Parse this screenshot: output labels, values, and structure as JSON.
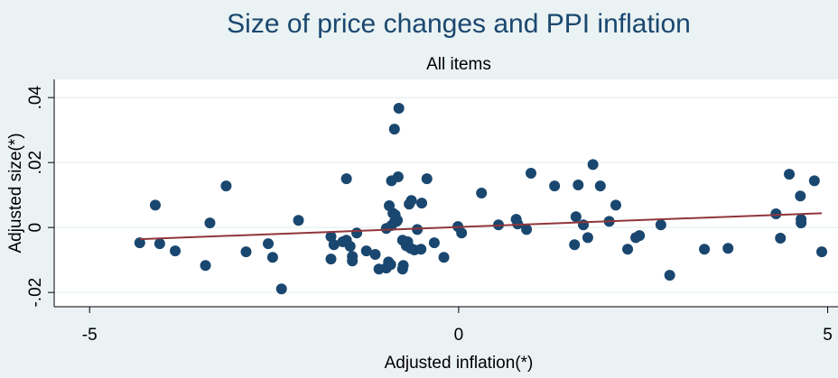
{
  "chart_data": {
    "type": "scatter",
    "title": "Size of price changes and PPI inflation",
    "subtitle": "All items",
    "xlabel": "Adjusted inflation(*)",
    "ylabel": "Adjusted size(*)",
    "xlim": [
      -5.48,
      5.14
    ],
    "xticks": [
      -5,
      0,
      5
    ],
    "ylim": [
      -0.0244,
      0.0456
    ],
    "yticks": [
      {
        "value": -0.02,
        "label": "-.02"
      },
      0,
      {
        "value": 0.02,
        "label": ".02"
      },
      {
        "value": 0.04,
        "label": ".04"
      }
    ],
    "grid": true,
    "series": [
      {
        "type": "scatter",
        "color": "#1a476f",
        "x": [
          -4.32,
          -4.11,
          -4.05,
          -3.84,
          -3.43,
          -3.37,
          -3.15,
          -2.88,
          -2.58,
          -2.52,
          -2.4,
          -2.17,
          -1.73,
          -1.73,
          -1.69,
          -1.57,
          -1.52,
          -1.52,
          -1.47,
          -1.44,
          -1.44,
          -1.38,
          -1.25,
          -1.13,
          -1.08,
          -0.98,
          -0.95,
          -0.98,
          -0.94,
          -0.92,
          -0.91,
          -0.91,
          -0.89,
          -0.87,
          -0.86,
          -0.84,
          -0.83,
          -0.82,
          -0.81,
          -0.87,
          -0.76,
          -0.76,
          -0.75,
          -0.71,
          -0.69,
          -0.67,
          -0.64,
          -0.65,
          -0.6,
          -0.56,
          -0.5,
          -0.51,
          -0.43,
          -0.33,
          -0.2,
          -0.01,
          0.04,
          0.31,
          0.54,
          0.78,
          0.8,
          0.92,
          0.98,
          1.3,
          1.57,
          1.59,
          1.62,
          1.69,
          1.75,
          1.82,
          1.92,
          2.04,
          2.13,
          2.29,
          2.4,
          2.45,
          2.74,
          2.86,
          3.33,
          3.65,
          4.3,
          4.36,
          4.48,
          4.63,
          4.64,
          4.64,
          4.82,
          4.92
        ],
        "values": [
          -0.0047,
          0.0069,
          -0.005,
          -0.0072,
          -0.0117,
          0.0014,
          0.0128,
          -0.0075,
          -0.005,
          -0.0092,
          -0.0189,
          0.0022,
          -0.0028,
          -0.0097,
          -0.0053,
          -0.0044,
          0.015,
          -0.0039,
          -0.0058,
          -0.0089,
          -0.0103,
          -0.0017,
          -0.0072,
          -0.0083,
          -0.0128,
          -0.0125,
          -0.0106,
          -0.0003,
          0.0067,
          -0.0114,
          0.0006,
          0.0144,
          0.0044,
          0.0017,
          0.0039,
          0.0019,
          0.0022,
          0.0156,
          0.0367,
          0.0303,
          -0.0039,
          -0.0128,
          -0.0117,
          -0.0056,
          -0.0044,
          0.0072,
          0.0083,
          -0.0064,
          -0.0069,
          -0.0006,
          0.0075,
          -0.0067,
          0.015,
          -0.0047,
          -0.0092,
          0.0003,
          -0.0017,
          0.0106,
          0.0008,
          0.0025,
          0.0011,
          -0.0006,
          0.0167,
          0.0128,
          -0.0053,
          0.0033,
          0.0131,
          0.0008,
          -0.0031,
          0.0194,
          0.0128,
          0.0019,
          0.0069,
          -0.0067,
          -0.0031,
          -0.0025,
          0.0008,
          -0.0147,
          -0.0067,
          -0.0064,
          0.0042,
          -0.0033,
          0.0164,
          0.0097,
          0.0025,
          0.0014,
          0.0144,
          -0.0075
        ]
      },
      {
        "type": "line",
        "color": "#90353b",
        "x": [
          -4.32,
          4.92
        ],
        "values": [
          -0.0036,
          0.0044
        ]
      }
    ]
  }
}
